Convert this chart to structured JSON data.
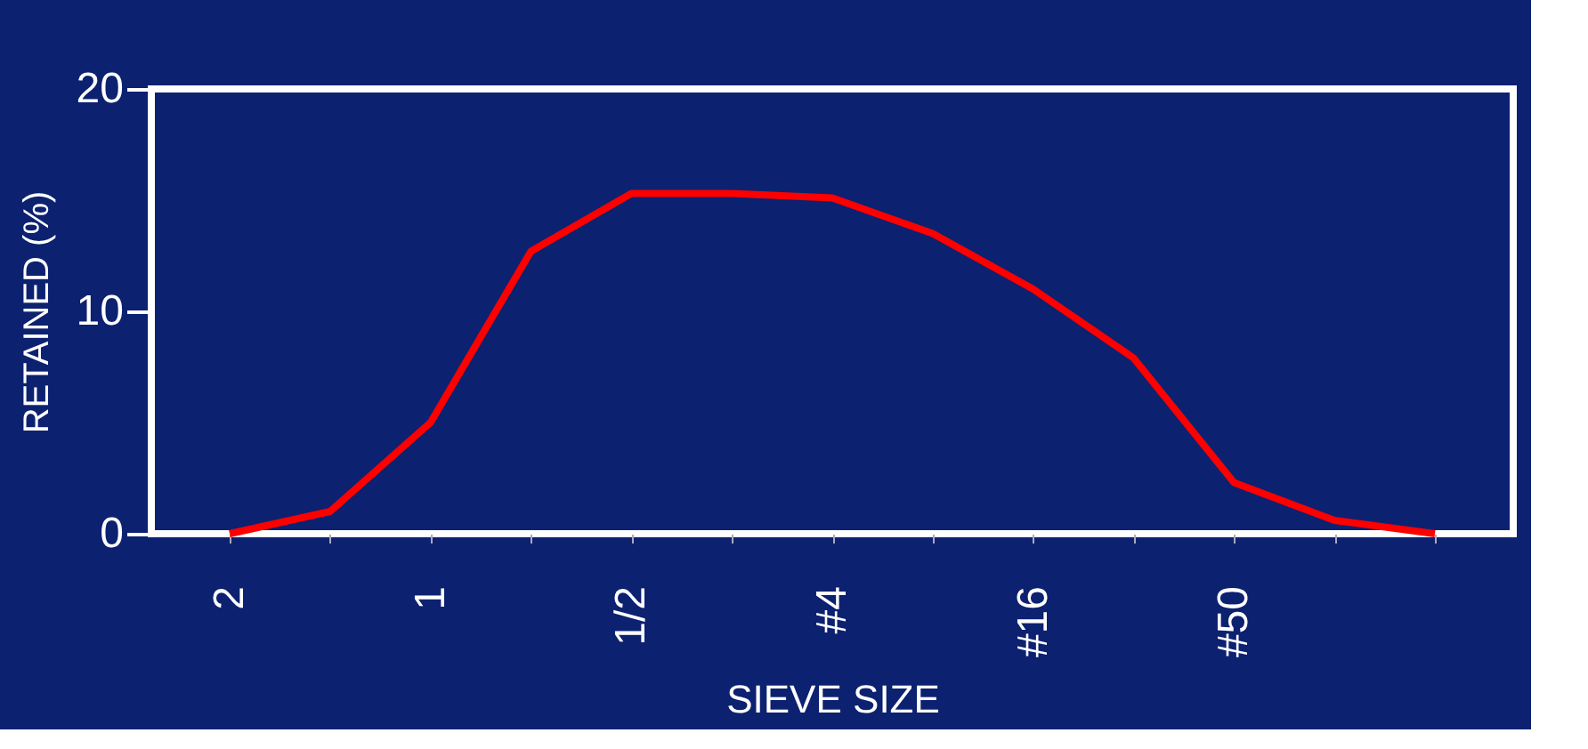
{
  "chart_data": {
    "type": "line",
    "xlabel": "SIEVE SIZE",
    "ylabel": "RETAINED (%)",
    "categories": [
      "2",
      null,
      "1",
      null,
      "1/2",
      null,
      "#4",
      null,
      "#16",
      null,
      "#50",
      null,
      null
    ],
    "series": [
      {
        "color": "#ff0000",
        "values": [
          0,
          1,
          5,
          12.7,
          15.3,
          15.3,
          15.1,
          13.5,
          11,
          7.9,
          2.3,
          0.6,
          0
        ]
      }
    ],
    "ylim": [
      0,
      20
    ],
    "yticks": [
      0,
      10,
      20
    ],
    "grid": false,
    "legend": false,
    "marker": "none",
    "line_style": "solid"
  }
}
